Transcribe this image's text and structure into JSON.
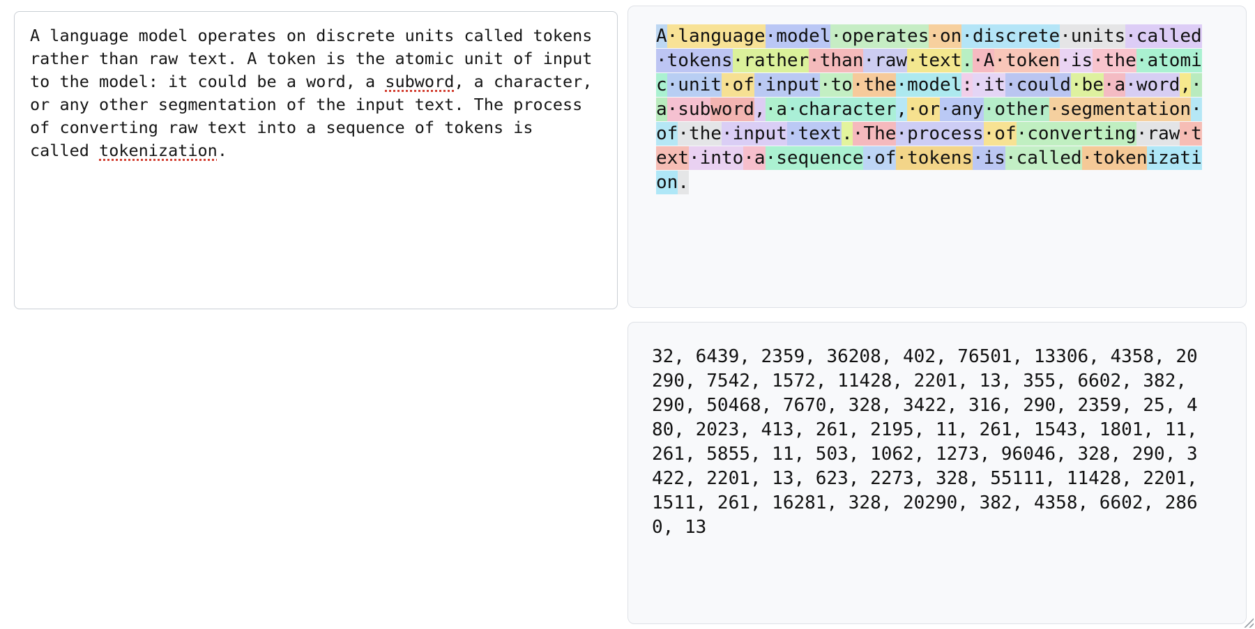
{
  "editor": {
    "segments": [
      {
        "text": "A language model operates on discrete units called tokens rather than raw text. A token is the atomic unit of input to the model: it could be a word, a ",
        "misspelled": false
      },
      {
        "text": "subword",
        "misspelled": true
      },
      {
        "text": ", a character, or any other segmentation of the input text. The process of converting raw text into a sequence of tokens is called ",
        "misspelled": false
      },
      {
        "text": "tokenization",
        "misspelled": true
      },
      {
        "text": ".",
        "misspelled": false
      }
    ]
  },
  "token_view": {
    "space_glyph": "·",
    "tokens": [
      {
        "text": "A",
        "id": 32,
        "color": "#bdd7f2"
      },
      {
        "text": " language",
        "id": 6439,
        "color": "#f8e296"
      },
      {
        "text": " model",
        "id": 2359,
        "color": "#bac7f5"
      },
      {
        "text": " operates",
        "id": 36208,
        "color": "#c6edc4"
      },
      {
        "text": " on",
        "id": 402,
        "color": "#f7d09e"
      },
      {
        "text": " discrete",
        "id": 76501,
        "color": "#b4e5f7"
      },
      {
        "text": " units",
        "id": 13306,
        "color": "#e5e5e6"
      },
      {
        "text": " called",
        "id": 4358,
        "color": "#ddcdf6"
      },
      {
        "text": " tokens",
        "id": 20290,
        "color": "#bdc5f3"
      },
      {
        "text": " rather",
        "id": 7542,
        "color": "#dbf19b"
      },
      {
        "text": " than",
        "id": 1572,
        "color": "#f4babb"
      },
      {
        "text": " raw",
        "id": 11428,
        "color": "#cdcdf1"
      },
      {
        "text": " text",
        "id": 2201,
        "color": "#f3e78f"
      },
      {
        "text": ".",
        "id": 13,
        "color": "#b8efc3"
      },
      {
        "text": " A",
        "id": 355,
        "color": "#f6bac1"
      },
      {
        "text": " token",
        "id": 6602,
        "color": "#f8c6b9"
      },
      {
        "text": " is",
        "id": 382,
        "color": "#ead4f3"
      },
      {
        "text": " the",
        "id": 290,
        "color": "#f8c4cd"
      },
      {
        "text": " atomic",
        "id": 50468,
        "color": "#aaf1d1"
      },
      {
        "text": " unit",
        "id": 7670,
        "color": "#b8cef3"
      },
      {
        "text": " of",
        "id": 328,
        "color": "#f6e093"
      },
      {
        "text": " input",
        "id": 3422,
        "color": "#bac9f3"
      },
      {
        "text": " to",
        "id": 316,
        "color": "#c3efc3"
      },
      {
        "text": " the",
        "id": 290,
        "color": "#f6ca9b"
      },
      {
        "text": " model",
        "id": 2359,
        "color": "#ade9ef"
      },
      {
        "text": ":",
        "id": 25,
        "color": "#f1cfe9"
      },
      {
        "text": " it",
        "id": 480,
        "color": "#e4d5f5"
      },
      {
        "text": " could",
        "id": 2023,
        "color": "#bac5f1"
      },
      {
        "text": " be",
        "id": 413,
        "color": "#def19f"
      },
      {
        "text": " a",
        "id": 261,
        "color": "#f4bbc3"
      },
      {
        "text": " word",
        "id": 2195,
        "color": "#d7cef3"
      },
      {
        "text": ",",
        "id": 11,
        "color": "#f6e98d"
      },
      {
        "text": " a",
        "id": 261,
        "color": "#b9ebbe"
      },
      {
        "text": " sub",
        "id": 1543,
        "color": "#f5c1d1"
      },
      {
        "text": "word",
        "id": 1801,
        "color": "#f3b4b1"
      },
      {
        "text": ",",
        "id": 11,
        "color": "#ddcdf3"
      },
      {
        "text": " a",
        "id": 261,
        "color": "#aff1cd"
      },
      {
        "text": " character",
        "id": 5855,
        "color": "#aaefd7"
      },
      {
        "text": ",",
        "id": 11,
        "color": "#b7e7f5"
      },
      {
        "text": " or",
        "id": 503,
        "color": "#f6e18f"
      },
      {
        "text": " any",
        "id": 1062,
        "color": "#bac9f5"
      },
      {
        "text": " other",
        "id": 1273,
        "color": "#b6edc9"
      },
      {
        "text": " segmentation",
        "id": 96046,
        "color": "#f5d09f"
      },
      {
        "text": " of",
        "id": 328,
        "color": "#b5e7f5"
      },
      {
        "text": " the",
        "id": 290,
        "color": "#e4e5e7"
      },
      {
        "text": " input",
        "id": 3422,
        "color": "#dacef5"
      },
      {
        "text": " text",
        "id": 2201,
        "color": "#bbc9f5"
      },
      {
        "text": ".",
        "id": 13,
        "color": "#e3f49d"
      },
      {
        "text": " The",
        "id": 623,
        "color": "#f5b9bd"
      },
      {
        "text": " process",
        "id": 2273,
        "color": "#cdcdf5"
      },
      {
        "text": " of",
        "id": 328,
        "color": "#f7e293"
      },
      {
        "text": " converting",
        "id": 55111,
        "color": "#c0efc1"
      },
      {
        "text": " raw",
        "id": 11428,
        "color": "#e3e4e6"
      },
      {
        "text": " text",
        "id": 2201,
        "color": "#f6bdb5"
      },
      {
        "text": " into",
        "id": 1511,
        "color": "#e9d1f1"
      },
      {
        "text": " a",
        "id": 261,
        "color": "#f7bfcc"
      },
      {
        "text": " sequence",
        "id": 16281,
        "color": "#abf1d1"
      },
      {
        "text": " of",
        "id": 328,
        "color": "#bdd5f5"
      },
      {
        "text": " tokens",
        "id": 20290,
        "color": "#f3d589"
      },
      {
        "text": " is",
        "id": 382,
        "color": "#bbc7f3"
      },
      {
        "text": " called",
        "id": 4358,
        "color": "#c3efc5"
      },
      {
        "text": " token",
        "id": 6602,
        "color": "#f5c997"
      },
      {
        "text": "ization",
        "id": 2860,
        "color": "#afe7f7"
      },
      {
        "text": ".",
        "id": 13,
        "color": "#e5e6e7"
      }
    ]
  },
  "ids_view": {
    "separator": ", "
  }
}
